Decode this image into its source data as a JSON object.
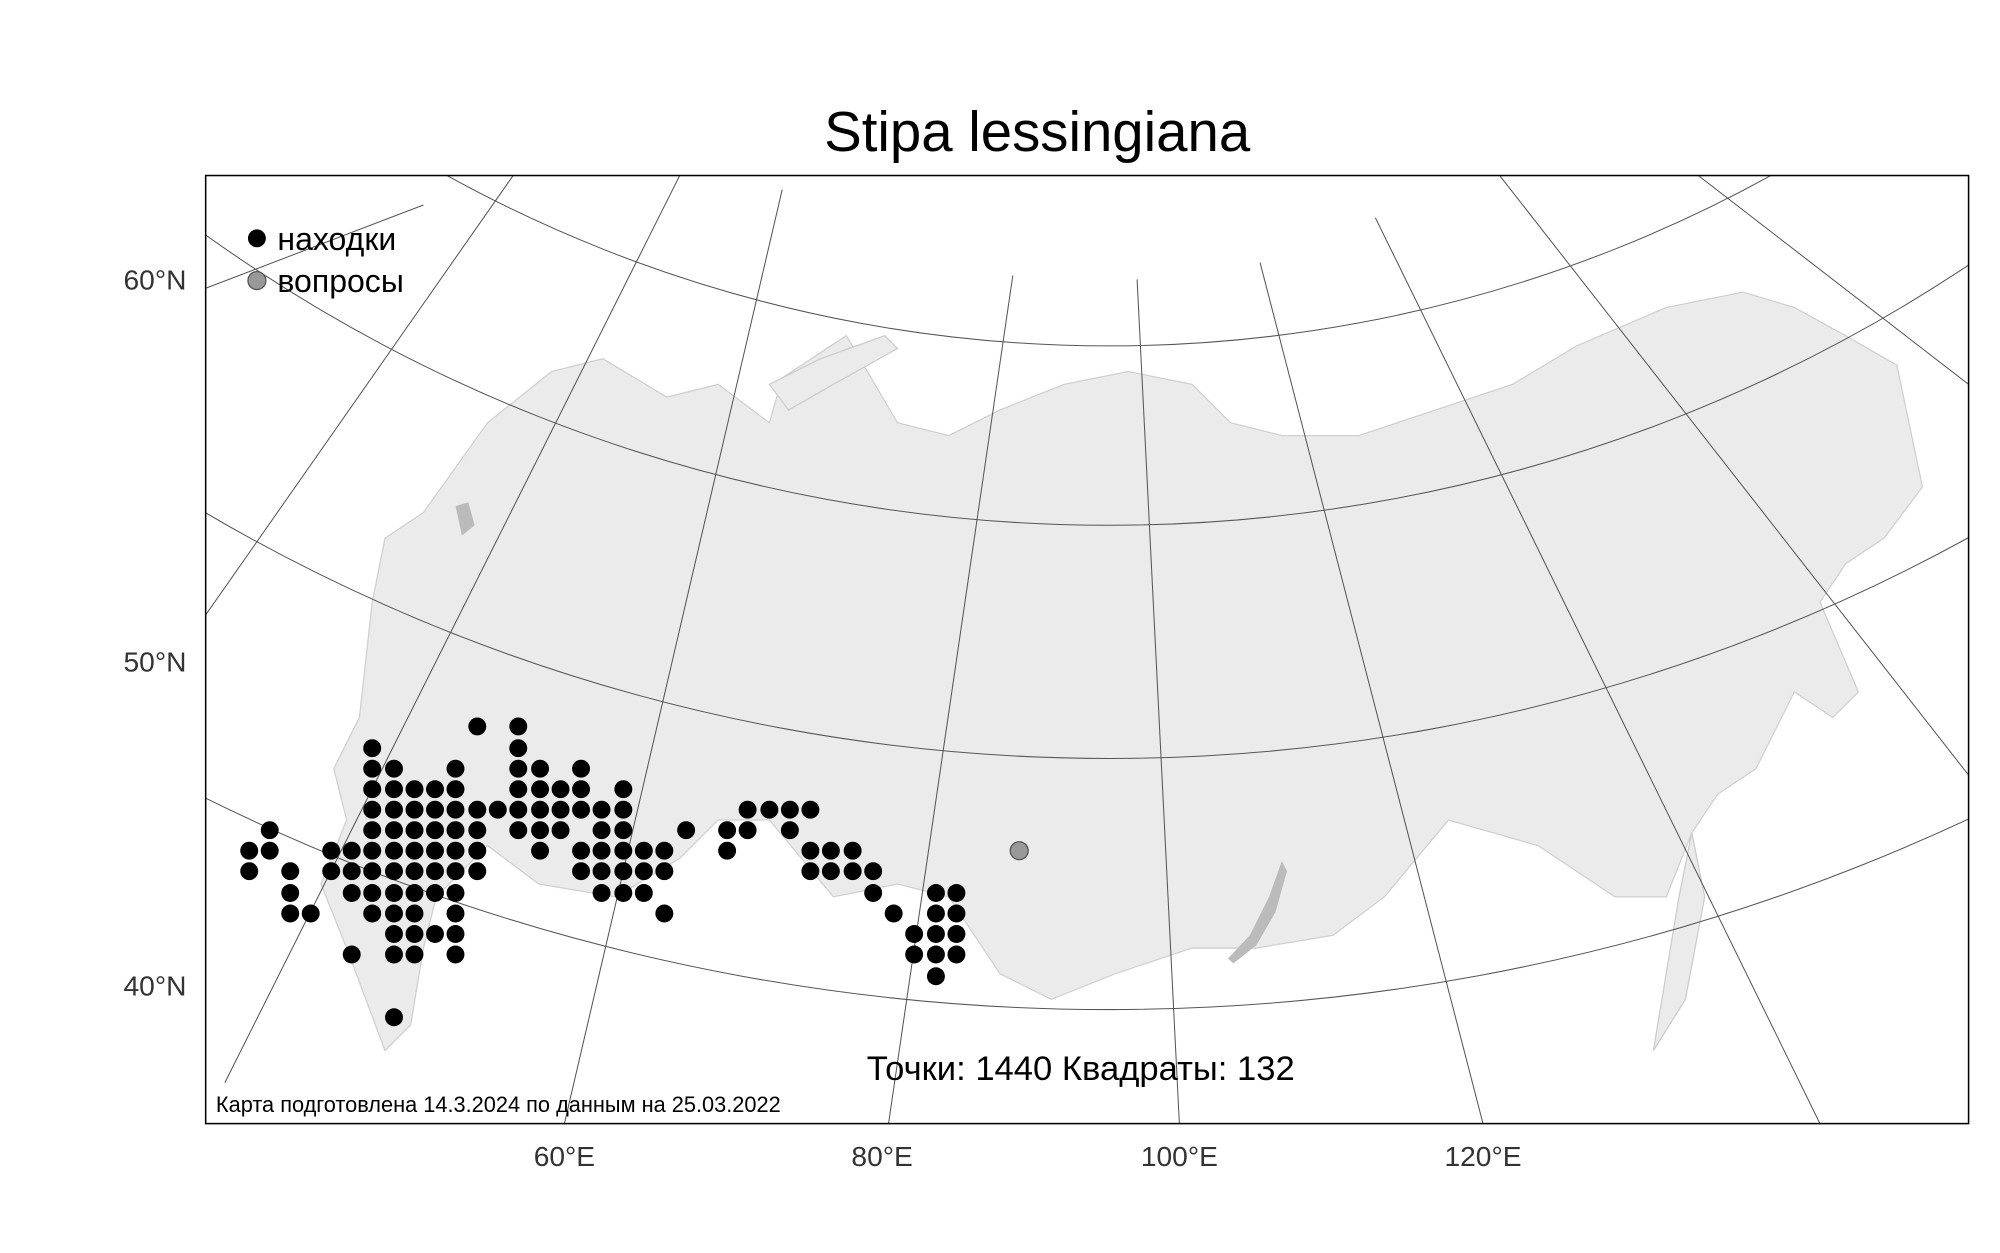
{
  "title": "Stipa lessingiana",
  "legend": [
    "находки",
    "вопросы"
  ],
  "lat_labels": [
    "60°N",
    "50°N",
    "40°N"
  ],
  "lon_labels": [
    "60°E",
    "80°E",
    "100°E",
    "120°E"
  ],
  "stats": "Точки: 1440 Квадраты: 132",
  "note": "Карта подготовлена 14.3.2024 по данным на 25.03.2022"
}
